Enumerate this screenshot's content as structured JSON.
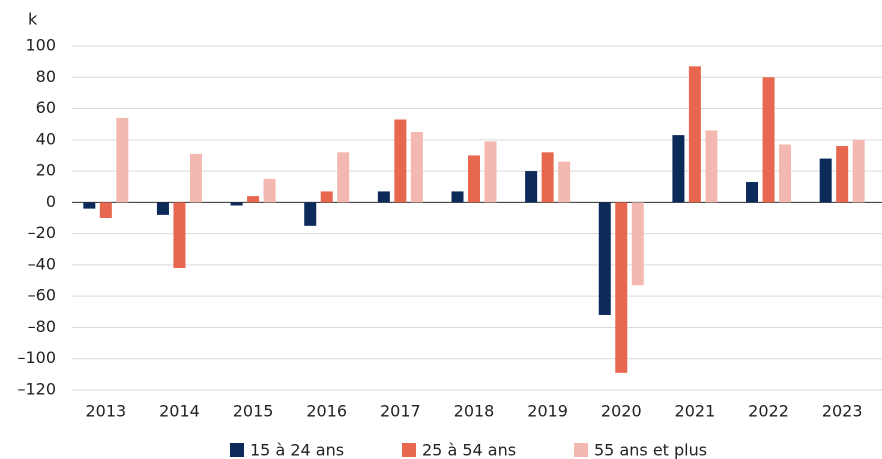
{
  "chart_data": {
    "type": "bar",
    "y_label": "k",
    "categories": [
      "2013",
      "2014",
      "2015",
      "2016",
      "2017",
      "2018",
      "2019",
      "2020",
      "2021",
      "2022",
      "2023"
    ],
    "series": [
      {
        "name": "15 à 24 ans",
        "color": "#0b2a59",
        "values": [
          -4,
          -8,
          -2,
          -15,
          7,
          7,
          20,
          -72,
          43,
          13,
          28
        ]
      },
      {
        "name": "25 à 54 ans",
        "color": "#e8674f",
        "values": [
          -10,
          -42,
          4,
          7,
          53,
          30,
          32,
          -109,
          87,
          80,
          36
        ]
      },
      {
        "name": "55 ans et plus",
        "color": "#f3b9b1",
        "values": [
          54,
          31,
          15,
          32,
          45,
          39,
          26,
          -53,
          46,
          37,
          40
        ]
      }
    ],
    "ylim": [
      -120,
      100
    ],
    "yticks": [
      {
        "value": -120,
        "label": "–120"
      },
      {
        "value": -100,
        "label": "–100"
      },
      {
        "value": -80,
        "label": "–80"
      },
      {
        "value": -60,
        "label": "–60"
      },
      {
        "value": -40,
        "label": "–40"
      },
      {
        "value": -20,
        "label": "–20"
      },
      0,
      20,
      40,
      60,
      80,
      100
    ],
    "grid": true,
    "legend": "bottom"
  }
}
